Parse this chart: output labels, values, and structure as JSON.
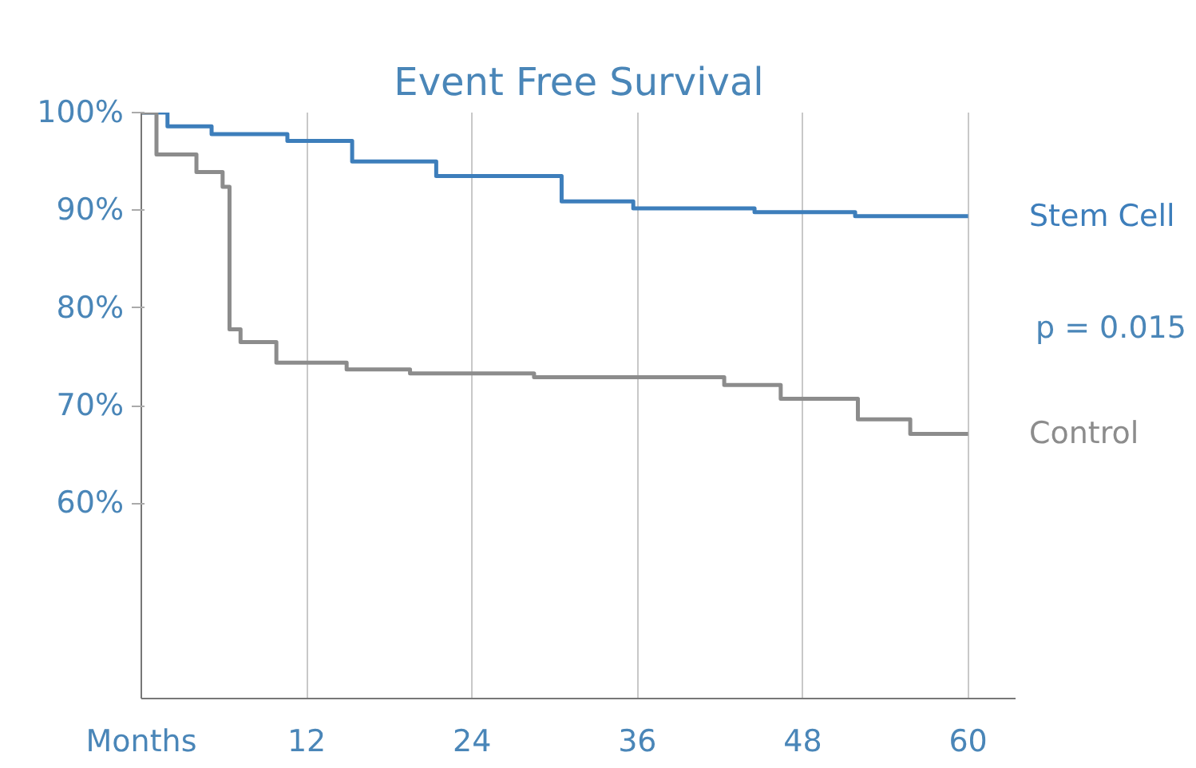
{
  "chart_data": {
    "type": "step",
    "title": "Event Free Survival",
    "series": [
      {
        "name": "Stem Cell",
        "color": "#3d7ebb",
        "x": [
          0,
          1.9,
          5.1,
          10.6,
          15.3,
          21.4,
          30.5,
          35.7,
          44.5,
          51.8,
          60
        ],
        "values": [
          100,
          98.6,
          97.8,
          97.1,
          95.0,
          93.5,
          90.9,
          90.2,
          89.8,
          89.4,
          89.4
        ]
      },
      {
        "name": "Control",
        "color": "#8c8c8c",
        "x": [
          0,
          1.1,
          4.0,
          5.9,
          6.4,
          7.2,
          9.8,
          14.9,
          19.5,
          28.5,
          42.3,
          46.4,
          52.0,
          55.8,
          60
        ],
        "values": [
          100,
          95.7,
          93.9,
          92.4,
          77.8,
          76.5,
          74.4,
          73.7,
          73.3,
          72.9,
          72.1,
          70.7,
          68.6,
          67.1,
          67.1
        ]
      }
    ],
    "xlim": [
      0,
      63.5
    ],
    "xticks": [
      {
        "value": 0,
        "label": "Months"
      },
      12,
      24,
      36,
      48,
      60
    ],
    "ylim": [
      40,
      100
    ],
    "yticks": [
      {
        "value": 60,
        "label": "60%"
      },
      {
        "value": 70,
        "label": "70%"
      },
      {
        "value": 80,
        "label": "80%"
      },
      {
        "value": 90,
        "label": "90%"
      },
      {
        "value": 100,
        "label": "100%"
      }
    ],
    "grid": "x",
    "legend": false,
    "line_style": "solid",
    "annotations": [
      "p = 0.015"
    ]
  }
}
